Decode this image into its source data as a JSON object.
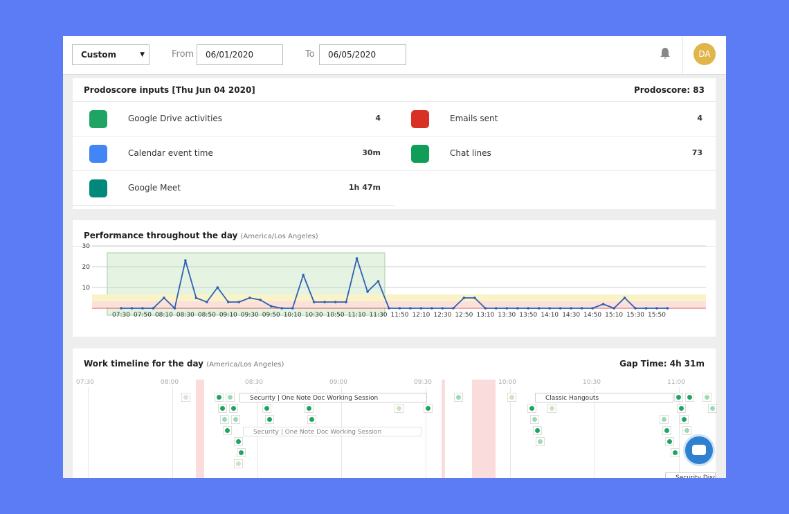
{
  "header": {
    "range": "Custom",
    "from_label": "From",
    "from": "06/01/2020",
    "to_label": "To",
    "to": "06/05/2020",
    "avatar": "DA"
  },
  "inputs": {
    "title": "Prodoscore inputs [Thu Jun 04 2020]",
    "score": "Prodoscore: 83",
    "items": [
      {
        "label": "Google Drive activities",
        "value": "4"
      },
      {
        "label": "Emails sent",
        "value": "4"
      },
      {
        "label": "Calendar event time",
        "value": "30m"
      },
      {
        "label": "Chat lines",
        "value": "73"
      },
      {
        "label": "Google Meet",
        "value": "1h 47m"
      }
    ]
  },
  "performance": {
    "title": "Performance throughout the day",
    "subtitle": "(America/Los Angeles)",
    "chart": {
      "type": "line",
      "color": "#2f5fb3",
      "categories": [
        "07:30",
        null,
        "07:50",
        null,
        "08:10",
        null,
        "08:30",
        null,
        "08:50",
        null,
        "09:10",
        null,
        "09:30",
        null,
        "09:50",
        null,
        "10:10",
        null,
        "10:30",
        null,
        "10:50",
        null,
        "11:10",
        null,
        "11:30",
        null,
        "11:50",
        null,
        "12:10",
        null,
        "12:30",
        null,
        "12:50",
        null,
        "13:10",
        null,
        "13:30",
        null,
        "13:50",
        null,
        "14:10",
        null,
        "14:30",
        null,
        "14:50",
        null,
        "15:10",
        null,
        "15:30",
        null,
        "15:50",
        null
      ],
      "values": [
        0,
        0,
        0,
        0,
        5,
        0,
        23,
        5,
        3,
        10,
        3,
        3,
        5,
        4,
        1,
        0,
        0,
        16,
        3,
        3,
        3,
        3,
        24,
        8,
        13,
        0,
        0,
        0,
        0,
        0,
        0,
        0,
        5,
        5,
        0,
        0,
        0,
        0,
        0,
        0,
        0,
        0,
        0,
        0,
        0,
        2,
        0,
        5,
        0,
        0,
        0,
        0
      ],
      "ylim": [
        0,
        30
      ],
      "yticks": [
        10,
        20,
        30
      ],
      "grid": true
    }
  },
  "timeline": {
    "title": "Work timeline for the day",
    "subtitle": "(America/Los Angeles)",
    "gap": "Gap Time: 4h 31m",
    "times": [
      "07:30",
      "08:00",
      "08:30",
      "09:00",
      "09:30",
      "10:00",
      "10:30",
      "11:00"
    ],
    "events": [
      "Security | One Note Doc Working Session",
      "Security | One Note Doc Working Session",
      "Classic Hangouts",
      "Security Discu"
    ]
  }
}
